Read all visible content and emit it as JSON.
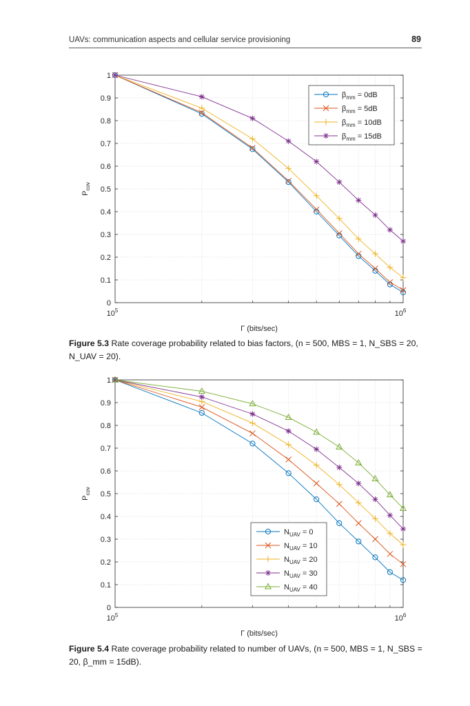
{
  "page": {
    "header_title": "UAVs: communication aspects and cellular service provisioning",
    "page_number": "89"
  },
  "figures": {
    "fig53": {
      "caption": {
        "label": "Figure 5.3",
        "text": "Rate coverage probability related to bias factors,",
        "params": "(n = 500 , MBS = 1, N",
        "params_full": "(n = 500, MBS = 1, N_SBS = 20, N_UAV = 20)."
      }
    },
    "fig54": {
      "caption": {
        "label": "Figure 5.4",
        "text": "Rate coverage probability related to number of UAVs,",
        "params_full": "(n = 500, MBS = 1, N_SBS = 20, β_mm = 15dB)."
      }
    }
  },
  "chart_data": [
    {
      "type": "line",
      "title": "",
      "xlabel": "Γ (bits/sec)",
      "ylabel": "P_cov",
      "xscale": "log",
      "xlim": [
        100000,
        1000000
      ],
      "ylim": [
        0,
        1
      ],
      "xtick_labels": [
        "10^5",
        "10^6"
      ],
      "yticks": [
        0,
        0.1,
        0.2,
        0.3,
        0.4,
        0.5,
        0.6,
        0.7,
        0.8,
        0.9,
        1
      ],
      "grid": true,
      "legend_position": "top-right",
      "x": [
        100000,
        200000,
        300000,
        400000,
        500000,
        600000,
        700000,
        800000,
        900000,
        1000000
      ],
      "series": [
        {
          "name": "β_mm = 0dB",
          "label_main": "β",
          "label_sub": "mm",
          "label_tail": " = 0dB",
          "color": "#0072BD",
          "marker": "circle",
          "values": [
            1.0,
            0.83,
            0.675,
            0.53,
            0.4,
            0.295,
            0.205,
            0.14,
            0.08,
            0.045
          ]
        },
        {
          "name": "β_mm = 5dB",
          "label_main": "β",
          "label_sub": "mm",
          "label_tail": " = 5dB",
          "color": "#D95319",
          "marker": "x",
          "values": [
            1.0,
            0.835,
            0.68,
            0.535,
            0.41,
            0.305,
            0.215,
            0.15,
            0.09,
            0.055
          ]
        },
        {
          "name": "β_mm = 10dB",
          "label_main": "β",
          "label_sub": "mm",
          "label_tail": " = 10dB",
          "color": "#EDB120",
          "marker": "plus",
          "values": [
            1.0,
            0.855,
            0.72,
            0.59,
            0.47,
            0.37,
            0.28,
            0.215,
            0.155,
            0.11
          ]
        },
        {
          "name": "β_mm = 15dB",
          "label_main": "β",
          "label_sub": "mm",
          "label_tail": " = 15dB",
          "color": "#7E2F8E",
          "marker": "star",
          "values": [
            1.0,
            0.905,
            0.81,
            0.71,
            0.62,
            0.53,
            0.45,
            0.385,
            0.32,
            0.27
          ]
        }
      ]
    },
    {
      "type": "line",
      "title": "",
      "xlabel": "Γ (bits/sec)",
      "ylabel": "P_cov",
      "xscale": "log",
      "xlim": [
        100000,
        1000000
      ],
      "ylim": [
        0,
        1
      ],
      "xtick_labels": [
        "10^5",
        "10^6"
      ],
      "yticks": [
        0,
        0.1,
        0.2,
        0.3,
        0.4,
        0.5,
        0.6,
        0.7,
        0.8,
        0.9,
        1
      ],
      "grid": true,
      "legend_position": "bottom-right",
      "x": [
        100000,
        200000,
        300000,
        400000,
        500000,
        600000,
        700000,
        800000,
        900000,
        1000000
      ],
      "series": [
        {
          "name": "N_UAV = 0",
          "label_main": "N",
          "label_sub": "UAV",
          "label_tail": " = 0",
          "color": "#0072BD",
          "marker": "circle",
          "values": [
            1.0,
            0.855,
            0.72,
            0.59,
            0.475,
            0.37,
            0.29,
            0.22,
            0.155,
            0.12
          ]
        },
        {
          "name": "N_UAV = 10",
          "label_main": "N",
          "label_sub": "UAV",
          "label_tail": " = 10",
          "color": "#D95319",
          "marker": "x",
          "values": [
            1.0,
            0.88,
            0.765,
            0.65,
            0.545,
            0.455,
            0.37,
            0.3,
            0.235,
            0.19
          ]
        },
        {
          "name": "N_UAV = 20",
          "label_main": "N",
          "label_sub": "UAV",
          "label_tail": " = 20",
          "color": "#EDB120",
          "marker": "plus",
          "values": [
            1.0,
            0.905,
            0.81,
            0.715,
            0.625,
            0.54,
            0.46,
            0.39,
            0.325,
            0.275
          ]
        },
        {
          "name": "N_UAV = 30",
          "label_main": "N",
          "label_sub": "UAV",
          "label_tail": " = 30",
          "color": "#7E2F8E",
          "marker": "star",
          "values": [
            1.0,
            0.925,
            0.85,
            0.775,
            0.695,
            0.615,
            0.545,
            0.475,
            0.405,
            0.345
          ]
        },
        {
          "name": "N_UAV = 40",
          "label_main": "N",
          "label_sub": "UAV",
          "label_tail": " = 40",
          "color": "#77AC30",
          "marker": "triangle",
          "values": [
            1.0,
            0.95,
            0.895,
            0.835,
            0.77,
            0.705,
            0.635,
            0.565,
            0.495,
            0.435
          ]
        }
      ]
    }
  ]
}
